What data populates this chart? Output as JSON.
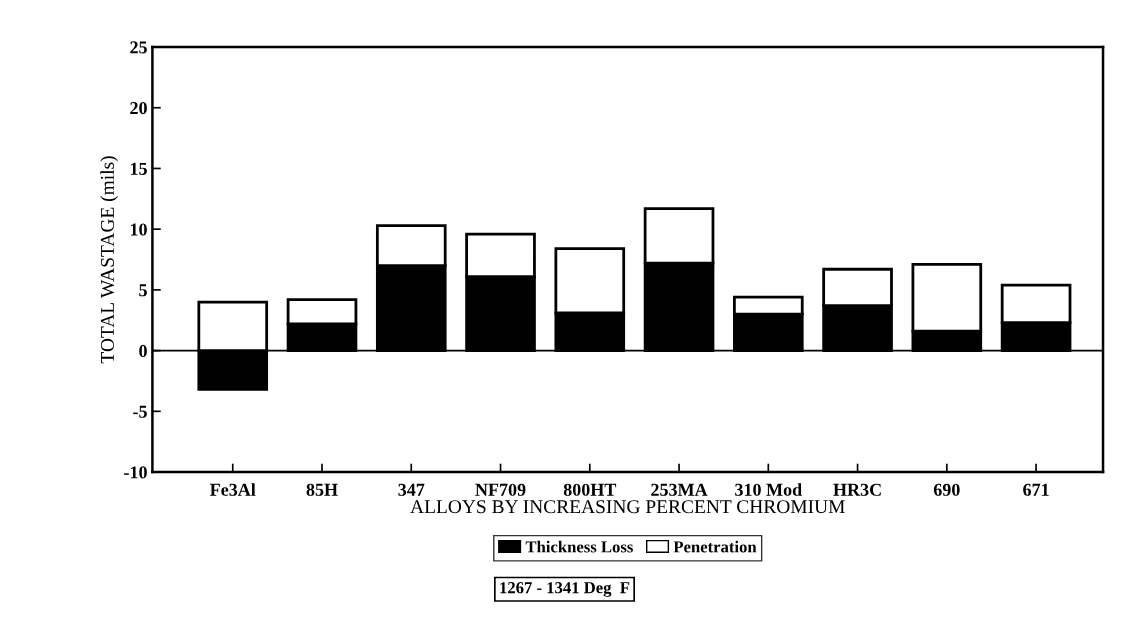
{
  "chart_data": {
    "type": "bar",
    "stacked": true,
    "xlabel": "ALLOYS BY INCREASING PERCENT CHROMIUM",
    "ylabel": "TOTAL WASTAGE (mils)",
    "categories": [
      "Fe3Al",
      "85H",
      "347",
      "NF709",
      "800HT",
      "253MA",
      "310 Mod",
      "HR3C",
      "690",
      "671"
    ],
    "series": [
      {
        "name": "Thickness Loss",
        "color": "#000000",
        "values": [
          -3.2,
          2.2,
          7.0,
          6.1,
          3.1,
          7.2,
          3.0,
          3.7,
          1.6,
          2.3
        ]
      },
      {
        "name": "Penetration",
        "color": "#ffffff",
        "values": [
          4.0,
          2.0,
          3.3,
          3.5,
          5.3,
          4.5,
          1.4,
          3.0,
          5.5,
          3.1
        ]
      }
    ],
    "ylim": [
      -10,
      25
    ],
    "yticks": [
      -10,
      -5,
      0,
      5,
      10,
      15,
      20,
      25
    ],
    "ref_lines": [
      {
        "axis": "y",
        "value": 0,
        "color": "#000000"
      }
    ],
    "grid": false,
    "legend": "bottom",
    "annotations": [
      "1267 - 1341 Deg  F"
    ]
  }
}
